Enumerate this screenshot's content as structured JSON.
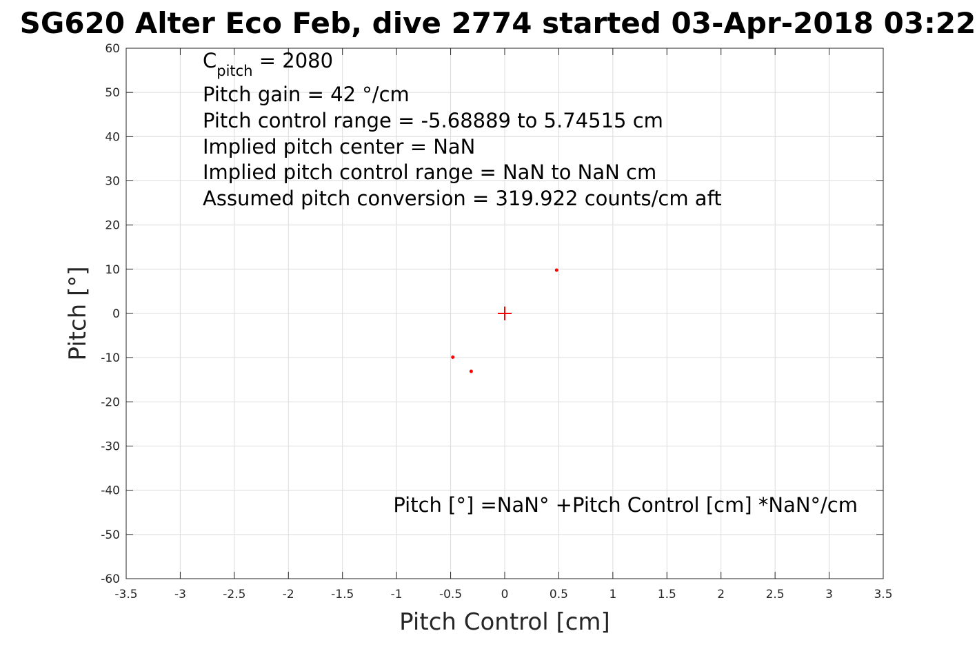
{
  "chart_data": {
    "type": "scatter",
    "title": "SG620 Alter Eco Feb, dive 2774 started 03-Apr-2018 03:22",
    "xlabel": "Pitch Control [cm]",
    "ylabel": "Pitch [°]",
    "xlim": [
      -3.5,
      3.5
    ],
    "ylim": [
      -60,
      60
    ],
    "xticks": [
      -3.5,
      -3,
      -2.5,
      -2,
      -1.5,
      -1,
      -0.5,
      0,
      0.5,
      1,
      1.5,
      2,
      2.5,
      3,
      3.5
    ],
    "yticks": [
      -60,
      -50,
      -40,
      -30,
      -20,
      -10,
      0,
      10,
      20,
      30,
      40,
      50,
      60
    ],
    "xtick_labels": [
      "-3.5",
      "-3",
      "-2.5",
      "-2",
      "-1.5",
      "-1",
      "-0.5",
      "0",
      "0.5",
      "1",
      "1.5",
      "2",
      "2.5",
      "3",
      "3.5"
    ],
    "ytick_labels": [
      "-60",
      "-50",
      "-40",
      "-30",
      "-20",
      "-10",
      "0",
      "10",
      "20",
      "30",
      "40",
      "50",
      "60"
    ],
    "grid": true,
    "marker_color": "#ff0000",
    "points": [
      {
        "x": 0.48,
        "y": 9.8
      },
      {
        "x": -0.48,
        "y": -9.9
      },
      {
        "x": -0.31,
        "y": -13.1
      }
    ],
    "center_marker": {
      "x": 0,
      "y": 0
    },
    "annotations": {
      "c_pitch_symbol": "C",
      "c_pitch_subscript": "pitch",
      "c_pitch_value": " = 2080",
      "pitch_gain": "Pitch gain = 42 °/cm",
      "control_range": "Pitch control range = -5.68889 to 5.74515 cm",
      "implied_center": "Implied pitch center = NaN",
      "implied_range": "Implied pitch control range = NaN to NaN cm",
      "assumed_conversion": "Assumed pitch conversion = 319.922 counts/cm aft",
      "fit_equation": "Pitch [°] =NaN° +Pitch Control [cm] *NaN°/cm"
    }
  }
}
